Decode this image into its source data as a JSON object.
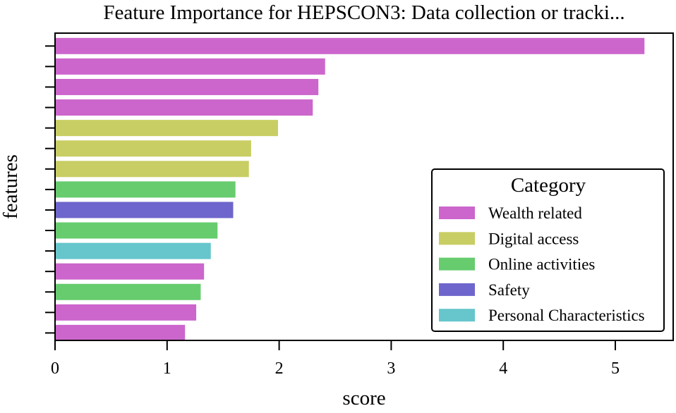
{
  "chart_data": {
    "type": "bar",
    "orientation": "horizontal",
    "title": "Feature Importance for HEPSCON3: Data collection or tracki...",
    "xlabel": "score",
    "ylabel": "features",
    "xlim": [
      0,
      5.5
    ],
    "xticks": [
      0,
      1,
      2,
      3,
      4,
      5
    ],
    "category_labels_shown": false,
    "bars": [
      {
        "value": 5.26,
        "category": "Wealth related"
      },
      {
        "value": 2.41,
        "category": "Wealth related"
      },
      {
        "value": 2.35,
        "category": "Wealth related"
      },
      {
        "value": 2.3,
        "category": "Wealth related"
      },
      {
        "value": 1.99,
        "category": "Digital access"
      },
      {
        "value": 1.75,
        "category": "Digital access"
      },
      {
        "value": 1.73,
        "category": "Digital access"
      },
      {
        "value": 1.61,
        "category": "Online activities"
      },
      {
        "value": 1.59,
        "category": "Safety"
      },
      {
        "value": 1.45,
        "category": "Online activities"
      },
      {
        "value": 1.39,
        "category": "Personal Characteristics"
      },
      {
        "value": 1.33,
        "category": "Wealth related"
      },
      {
        "value": 1.3,
        "category": "Online activities"
      },
      {
        "value": 1.26,
        "category": "Wealth related"
      },
      {
        "value": 1.16,
        "category": "Wealth related"
      }
    ],
    "legend": {
      "title": "Category",
      "position": "lower-right",
      "entries": [
        {
          "label": "Wealth related",
          "color": "#cc66cc"
        },
        {
          "label": "Digital access",
          "color": "#c9ce64"
        },
        {
          "label": "Online activities",
          "color": "#66cc6e"
        },
        {
          "label": "Safety",
          "color": "#6e66cc"
        },
        {
          "label": "Personal Characteristics",
          "color": "#66c6cc"
        }
      ]
    },
    "grid": false
  }
}
